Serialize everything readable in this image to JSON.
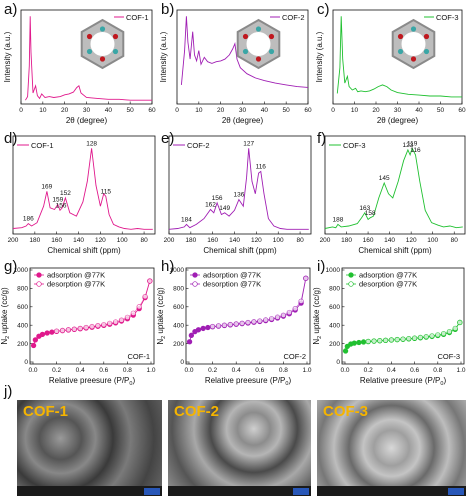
{
  "panel_letters": [
    "a)",
    "b)",
    "c)",
    "d)",
    "e)",
    "f)",
    "g)",
    "h)",
    "i)",
    "j)"
  ],
  "colors": {
    "cof1": "#e0198c",
    "cof2": "#a01fb4",
    "cof3": "#20c030",
    "sem_label": "#f5b400"
  },
  "chart_data": [
    {
      "id": "xrd-cof1",
      "type": "line",
      "xlabel": "2θ (degree)",
      "ylabel": "Intensity (a.u.)",
      "xlim": [
        0,
        60
      ],
      "xticks": [
        0,
        10,
        20,
        30,
        40,
        50,
        60
      ],
      "legend": "COF-1",
      "legend_position": "top-right",
      "series": [
        {
          "name": "COF-1",
          "x": [
            2,
            3,
            3.8,
            4.2,
            4.6,
            5.5,
            6.7,
            7.5,
            8.5,
            9.5,
            11,
            13,
            15,
            18,
            20,
            22,
            24,
            25.5,
            26.5,
            27.5,
            30,
            35,
            40,
            45,
            50,
            55,
            60
          ],
          "y": [
            2,
            6,
            40,
            95,
            55,
            10,
            18,
            7,
            4,
            9,
            5,
            6,
            5,
            6,
            8,
            9,
            11,
            16,
            18,
            10,
            5,
            4,
            3,
            3,
            2,
            2,
            2
          ]
        }
      ]
    },
    {
      "id": "xrd-cof2",
      "type": "line",
      "xlabel": "2θ (degree)",
      "ylabel": "Intensity (a.u.)",
      "xlim": [
        0,
        60
      ],
      "xticks": [
        0,
        10,
        20,
        30,
        40,
        50,
        60
      ],
      "legend": "COF-2",
      "legend_position": "top-right",
      "series": [
        {
          "name": "COF-2",
          "x": [
            2,
            3.5,
            4.3,
            5,
            6,
            7.2,
            8,
            9,
            10,
            11,
            12.5,
            14,
            16,
            18,
            20,
            22,
            24,
            25.5,
            26.5,
            27.5,
            29,
            32,
            36,
            40,
            45,
            50,
            55,
            60
          ],
          "y": [
            20,
            60,
            100,
            70,
            50,
            82,
            55,
            48,
            60,
            44,
            52,
            47,
            45,
            47,
            48,
            50,
            55,
            62,
            68,
            50,
            40,
            33,
            28,
            25,
            22,
            20,
            18,
            17
          ]
        }
      ]
    },
    {
      "id": "xrd-cof3",
      "type": "line",
      "xlabel": "2θ (degree)",
      "ylabel": "Intensity (a.u.)",
      "xlim": [
        0,
        60
      ],
      "xticks": [
        0,
        10,
        20,
        30,
        40,
        50,
        60
      ],
      "legend": "COF-3",
      "legend_position": "top-right",
      "series": [
        {
          "name": "COF-3",
          "x": [
            2,
            3.2,
            3.8,
            4.5,
            5.5,
            6.7,
            7.5,
            9,
            10.5,
            11.5,
            13,
            15,
            17,
            19,
            21,
            23,
            25,
            27,
            30,
            35,
            40,
            45,
            50,
            55,
            60
          ],
          "y": [
            10,
            40,
            100,
            50,
            22,
            30,
            18,
            14,
            16,
            12,
            13,
            12,
            13,
            15,
            18,
            20,
            18,
            14,
            11,
            9,
            8,
            7,
            7,
            6,
            6
          ]
        }
      ]
    },
    {
      "id": "nmr-cof1",
      "type": "line",
      "xlabel": "Chemical shift (ppm)",
      "ylabel": "",
      "xlim": [
        200,
        70
      ],
      "xreversed": true,
      "xticks": [
        200,
        180,
        160,
        140,
        120,
        100,
        80
      ],
      "legend": "COF-1",
      "legend_position": "top-left",
      "peaks": [
        186,
        169,
        159,
        156,
        152,
        128,
        115
      ],
      "series": [
        {
          "name": "COF-1",
          "x": [
            200,
            192,
            188,
            186,
            183,
            178,
            172,
            169,
            166,
            162,
            159,
            157,
            155,
            152,
            148,
            142,
            136,
            132,
            128,
            124,
            120,
            117,
            115,
            112,
            108,
            103,
            98,
            92,
            86,
            80,
            72
          ],
          "y": [
            3,
            4,
            6,
            9,
            6,
            10,
            30,
            48,
            28,
            26,
            32,
            25,
            28,
            40,
            22,
            18,
            35,
            60,
            100,
            55,
            30,
            45,
            42,
            20,
            8,
            5,
            3,
            2,
            3,
            2,
            2
          ]
        }
      ]
    },
    {
      "id": "nmr-cof2",
      "type": "line",
      "xlabel": "Chemical shift (ppm)",
      "ylabel": "",
      "xlim": [
        200,
        70
      ],
      "xreversed": true,
      "xticks": [
        200,
        180,
        160,
        140,
        120,
        100,
        80
      ],
      "legend": "COF-2",
      "legend_position": "top-left",
      "peaks": [
        184,
        162,
        156,
        149,
        136,
        127,
        116
      ],
      "series": [
        {
          "name": "COF-2",
          "x": [
            200,
            192,
            186,
            184,
            181,
            175,
            168,
            162,
            159,
            156,
            152,
            149,
            145,
            140,
            136,
            132,
            129,
            127,
            124,
            121,
            118,
            116,
            113,
            109,
            104,
            98,
            92,
            86,
            80,
            72
          ],
          "y": [
            2,
            3,
            5,
            8,
            4,
            8,
            15,
            26,
            22,
            34,
            20,
            22,
            18,
            25,
            38,
            30,
            65,
            100,
            60,
            45,
            70,
            72,
            45,
            15,
            6,
            3,
            2,
            2,
            2,
            2
          ]
        }
      ]
    },
    {
      "id": "nmr-cof3",
      "type": "line",
      "xlabel": "Chemical shift (ppm)",
      "ylabel": "",
      "xlim": [
        200,
        70
      ],
      "xreversed": true,
      "xticks": [
        200,
        180,
        160,
        140,
        120,
        100,
        80
      ],
      "legend": "COF-3",
      "legend_position": "top-left",
      "peaks": [
        188,
        163,
        158,
        145,
        123,
        119,
        116
      ],
      "series": [
        {
          "name": "COF-3",
          "x": [
            200,
            193,
            190,
            188,
            185,
            178,
            170,
            166,
            163,
            160,
            158,
            155,
            150,
            145,
            141,
            137,
            132,
            127,
            123,
            121,
            119,
            116,
            112,
            107,
            101,
            95,
            90,
            84,
            78,
            72
          ],
          "y": [
            3,
            5,
            4,
            8,
            5,
            6,
            9,
            16,
            22,
            14,
            16,
            18,
            40,
            58,
            45,
            40,
            60,
            85,
            98,
            92,
            100,
            92,
            60,
            25,
            10,
            7,
            5,
            6,
            4,
            5
          ]
        }
      ]
    },
    {
      "id": "bet-cof1",
      "type": "scatter",
      "xlabel": "Relative preesure (P/P0)",
      "ylabel": "N2 uptake (cc/g)",
      "xlim": [
        0,
        1
      ],
      "ylim": [
        0,
        1000
      ],
      "xticks": [
        0.0,
        0.2,
        0.4,
        0.6,
        0.8,
        1.0
      ],
      "yticks": [
        0,
        200,
        400,
        600,
        800,
        1000
      ],
      "legend_position": "top-left",
      "corner_label": "COF-1",
      "series": [
        {
          "name": "adsorption @77K",
          "style": "filled",
          "x": [
            0.005,
            0.02,
            0.05,
            0.08,
            0.12,
            0.16,
            0.2,
            0.25,
            0.3,
            0.35,
            0.4,
            0.45,
            0.5,
            0.55,
            0.6,
            0.65,
            0.7,
            0.75,
            0.8,
            0.85,
            0.9,
            0.95,
            0.99
          ],
          "y": [
            180,
            240,
            280,
            300,
            315,
            325,
            333,
            341,
            348,
            355,
            362,
            370,
            378,
            388,
            398,
            410,
            425,
            445,
            470,
            510,
            580,
            700,
            880
          ]
        },
        {
          "name": "desorption @77K",
          "style": "open",
          "x": [
            0.99,
            0.95,
            0.9,
            0.85,
            0.8,
            0.75,
            0.7,
            0.65,
            0.6,
            0.55,
            0.5,
            0.45,
            0.4,
            0.35,
            0.3,
            0.25,
            0.2
          ],
          "y": [
            880,
            710,
            600,
            530,
            485,
            455,
            435,
            420,
            405,
            395,
            385,
            375,
            365,
            357,
            350,
            343,
            336
          ]
        }
      ]
    },
    {
      "id": "bet-cof2",
      "type": "scatter",
      "xlabel": "Relative preesure (P/P0)",
      "ylabel": "N2 uptake (cc/g)",
      "xlim": [
        0,
        1
      ],
      "ylim": [
        0,
        1000
      ],
      "xticks": [
        0.0,
        0.2,
        0.4,
        0.6,
        0.8,
        1.0
      ],
      "yticks": [
        0,
        200,
        400,
        600,
        800,
        1000
      ],
      "legend_position": "top-left",
      "corner_label": "COF-2",
      "series": [
        {
          "name": "adsorption @77K",
          "style": "filled",
          "x": [
            0.005,
            0.02,
            0.05,
            0.08,
            0.12,
            0.16,
            0.2,
            0.25,
            0.3,
            0.35,
            0.4,
            0.45,
            0.5,
            0.55,
            0.6,
            0.65,
            0.7,
            0.75,
            0.8,
            0.85,
            0.9,
            0.95,
            0.99
          ],
          "y": [
            220,
            290,
            330,
            350,
            365,
            375,
            383,
            390,
            397,
            404,
            410,
            417,
            424,
            432,
            440,
            450,
            462,
            478,
            498,
            525,
            565,
            640,
            910
          ]
        },
        {
          "name": "desorption @77K",
          "style": "open",
          "x": [
            0.99,
            0.95,
            0.9,
            0.85,
            0.8,
            0.75,
            0.7,
            0.65,
            0.6,
            0.55,
            0.5,
            0.45,
            0.4,
            0.35,
            0.3,
            0.25,
            0.2
          ],
          "y": [
            910,
            660,
            580,
            538,
            508,
            487,
            470,
            457,
            446,
            437,
            429,
            421,
            414,
            407,
            400,
            393,
            386
          ]
        }
      ]
    },
    {
      "id": "bet-cof3",
      "type": "scatter",
      "xlabel": "Relative preesure (P/P0)",
      "ylabel": "N2 uptake (cc/g)",
      "xlim": [
        0,
        1
      ],
      "ylim": [
        0,
        1000
      ],
      "xticks": [
        0.0,
        0.2,
        0.4,
        0.6,
        0.8,
        1.0
      ],
      "yticks": [
        0,
        200,
        400,
        600,
        800,
        1000
      ],
      "legend_position": "top-left",
      "corner_label": "COF-3",
      "series": [
        {
          "name": "adsorption @77K",
          "style": "filled",
          "x": [
            0.005,
            0.02,
            0.05,
            0.08,
            0.12,
            0.16,
            0.2,
            0.25,
            0.3,
            0.35,
            0.4,
            0.45,
            0.5,
            0.55,
            0.6,
            0.65,
            0.7,
            0.75,
            0.8,
            0.85,
            0.9,
            0.95,
            0.99
          ],
          "y": [
            120,
            170,
            195,
            205,
            212,
            218,
            222,
            227,
            231,
            235,
            239,
            243,
            247,
            252,
            257,
            263,
            270,
            278,
            288,
            300,
            320,
            355,
            430
          ]
        },
        {
          "name": "desorption @77K",
          "style": "open",
          "x": [
            0.99,
            0.95,
            0.9,
            0.85,
            0.8,
            0.75,
            0.7,
            0.65,
            0.6,
            0.55,
            0.5,
            0.45,
            0.4,
            0.35,
            0.3,
            0.25,
            0.2
          ],
          "y": [
            430,
            365,
            330,
            308,
            295,
            284,
            275,
            267,
            260,
            254,
            249,
            244,
            240,
            236,
            232,
            228,
            224
          ]
        }
      ]
    }
  ],
  "sem": [
    {
      "title": "COF-1"
    },
    {
      "title": "COF-2"
    },
    {
      "title": "COF-3"
    }
  ]
}
